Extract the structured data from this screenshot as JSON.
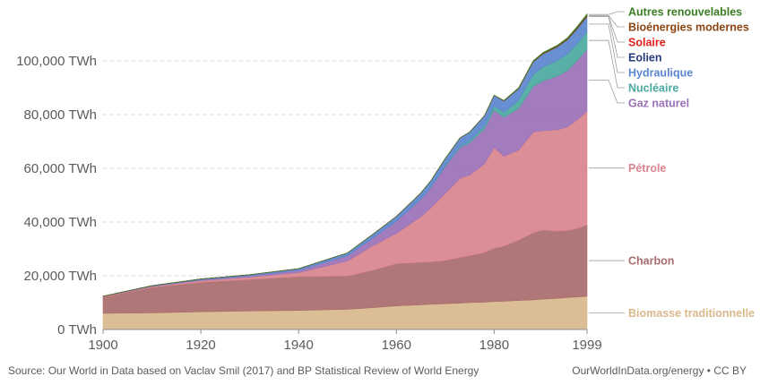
{
  "chart_data": {
    "type": "area",
    "stacked": true,
    "title": "",
    "xlabel": "",
    "ylabel": "",
    "x_range": [
      1900,
      1999
    ],
    "ylim": [
      0,
      120000
    ],
    "x_ticks": [
      1900,
      1920,
      1940,
      1960,
      1980,
      1999
    ],
    "y_ticks": [
      0,
      20000,
      40000,
      60000,
      80000,
      100000
    ],
    "y_tick_labels": [
      "0 TWh",
      "20,000 TWh",
      "40,000 TWh",
      "60,000 TWh",
      "80,000 TWh",
      "100,000 TWh"
    ],
    "grid": "horizontal-dashed",
    "legend_placement": "right",
    "x": [
      1900,
      1910,
      1920,
      1930,
      1940,
      1950,
      1955,
      1960,
      1965,
      1967,
      1970,
      1973,
      1975,
      1978,
      1980,
      1982,
      1985,
      1988,
      1990,
      1993,
      1995,
      1997,
      1999
    ],
    "series": [
      {
        "name": "Biomasse traditionnelle",
        "color": "#d8b98c",
        "values": [
          6000,
          6200,
          6600,
          6900,
          7100,
          7500,
          8100,
          8800,
          9200,
          9400,
          9600,
          9800,
          10000,
          10200,
          10400,
          10500,
          10800,
          11000,
          11300,
          11600,
          11900,
          12100,
          12400
        ]
      },
      {
        "name": "Charbon",
        "color": "#a86b6b",
        "values": [
          6100,
          9500,
          11000,
          11700,
          12600,
          12400,
          13900,
          15700,
          15800,
          15800,
          16100,
          17000,
          17500,
          18500,
          19800,
          20500,
          22500,
          25000,
          25700,
          25000,
          25000,
          25500,
          26500
        ]
      },
      {
        "name": "Pétrole",
        "color": "#d9848e",
        "values": [
          200,
          300,
          600,
          900,
          1500,
          5600,
          9000,
          11300,
          17000,
          20000,
          25000,
          29500,
          30000,
          33000,
          37500,
          33500,
          33500,
          37500,
          37000,
          37800,
          38500,
          40500,
          42400
        ]
      },
      {
        "name": "Gaz naturel",
        "color": "#9a71b6",
        "values": [
          50,
          150,
          300,
          500,
          800,
          2000,
          2800,
          4500,
          6500,
          7500,
          10000,
          11500,
          12000,
          13000,
          14000,
          14500,
          15500,
          17000,
          18500,
          20000,
          21000,
          22000,
          23000
        ]
      },
      {
        "name": "Nucléaire",
        "color": "#4aa9a0",
        "values": [
          0,
          0,
          0,
          0,
          0,
          0,
          0,
          0,
          100,
          150,
          250,
          500,
          700,
          1100,
          1500,
          1900,
          3000,
          4500,
          5200,
          5800,
          6200,
          6400,
          6600
        ]
      },
      {
        "name": "Hydraulique",
        "color": "#5a86cd",
        "values": [
          50,
          150,
          300,
          400,
          650,
          1000,
          1400,
          1800,
          2200,
          2400,
          2700,
          3000,
          3300,
          3700,
          4000,
          4200,
          4400,
          4700,
          4900,
          5100,
          5300,
          5500,
          5600
        ]
      },
      {
        "name": "Eolien",
        "color": "#243a7a",
        "values": [
          0,
          0,
          0,
          0,
          0,
          0,
          0,
          0,
          0,
          0,
          0,
          0,
          0,
          0,
          0,
          0,
          0,
          0,
          10,
          20,
          30,
          50,
          80
        ]
      },
      {
        "name": "Solaire",
        "color": "#e3201b",
        "values": [
          0,
          0,
          0,
          0,
          0,
          0,
          0,
          0,
          0,
          0,
          0,
          0,
          0,
          0,
          0,
          0,
          0,
          0,
          0,
          0,
          0,
          0,
          10
        ]
      },
      {
        "name": "Bioénergies modernes",
        "color": "#8b4513",
        "values": [
          0,
          0,
          0,
          0,
          0,
          0,
          0,
          0,
          0,
          0,
          0,
          0,
          0,
          0,
          0,
          100,
          150,
          200,
          250,
          300,
          350,
          400,
          450
        ]
      },
      {
        "name": "Autres renouvelables",
        "color": "#3b7d23",
        "values": [
          0,
          0,
          0,
          0,
          0,
          0,
          0,
          0,
          0,
          0,
          0,
          0,
          0,
          0,
          50,
          100,
          150,
          200,
          250,
          300,
          350,
          400,
          450
        ]
      }
    ]
  },
  "footer": {
    "source": "Source: Our World in Data based on Vaclav Smil (2017) and BP Statistical Review of World Energy",
    "credit": "OurWorldInData.org/energy • CC BY"
  }
}
